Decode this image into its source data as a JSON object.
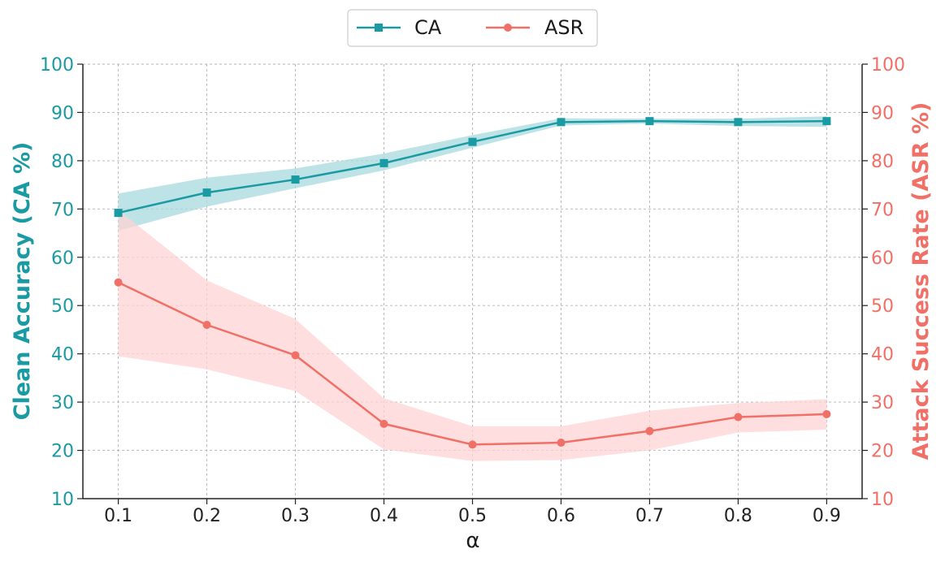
{
  "chart_data": {
    "type": "line",
    "title": "",
    "xlabel": "α",
    "x": [
      0.1,
      0.2,
      0.3,
      0.4,
      0.5,
      0.6,
      0.7,
      0.8,
      0.9
    ],
    "x_tick_labels": [
      "0.1",
      "0.2",
      "0.3",
      "0.4",
      "0.5",
      "0.6",
      "0.7",
      "0.8",
      "0.9"
    ],
    "y_left": {
      "label": "Clean Accuracy (CA %)",
      "lim": [
        10,
        100
      ],
      "ticks": [
        "10",
        "20",
        "30",
        "40",
        "50",
        "60",
        "70",
        "80",
        "90",
        "100"
      ],
      "color": "#1a9aa3"
    },
    "y_right": {
      "label": "Attack Success Rate (ASR %)",
      "lim": [
        10,
        100
      ],
      "ticks": [
        "10",
        "20",
        "30",
        "40",
        "50",
        "60",
        "70",
        "80",
        "90",
        "100"
      ],
      "color": "#f07067"
    },
    "grid": true,
    "legend_position": "top-center",
    "series": [
      {
        "name": "CA",
        "axis": "left",
        "color": "#1a9aa3",
        "band_color": "#a8d9de",
        "marker": "square",
        "values": [
          69.2,
          73.4,
          76.1,
          79.5,
          83.9,
          88.0,
          88.2,
          88.0,
          88.2
        ],
        "lower": [
          65.5,
          70.5,
          74.3,
          78.0,
          82.7,
          87.3,
          87.7,
          87.2,
          87.0
        ],
        "upper": [
          73.2,
          76.5,
          78.4,
          81.5,
          85.3,
          88.8,
          88.7,
          88.7,
          89.2
        ]
      },
      {
        "name": "ASR",
        "axis": "right",
        "color": "#f07067",
        "band_color": "#fdd3d3",
        "marker": "circle",
        "values": [
          54.8,
          46.0,
          39.7,
          25.5,
          21.2,
          21.6,
          24.0,
          26.9,
          27.5
        ],
        "lower": [
          39.5,
          36.8,
          32.3,
          20.2,
          17.8,
          18.0,
          20.0,
          23.7,
          24.3
        ],
        "upper": [
          69.8,
          55.2,
          47.2,
          30.8,
          25.0,
          25.0,
          28.2,
          29.8,
          30.6
        ]
      }
    ]
  }
}
